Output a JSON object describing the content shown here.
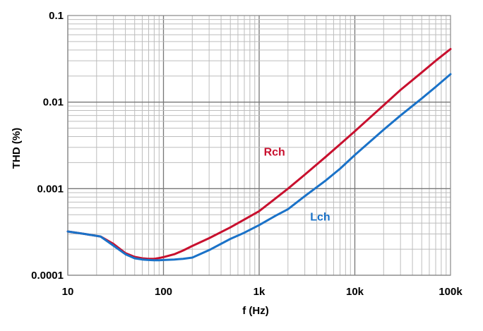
{
  "chart_data": {
    "type": "line",
    "xlabel": "f (Hz)",
    "ylabel": "THD (%)",
    "x_scale": "log",
    "y_scale": "log",
    "xlim": [
      10,
      100000
    ],
    "ylim": [
      0.0001,
      0.1
    ],
    "grid": true,
    "x_ticks": [
      {
        "value": 10,
        "label": "10"
      },
      {
        "value": 100,
        "label": "100"
      },
      {
        "value": 1000,
        "label": "1k"
      },
      {
        "value": 10000,
        "label": "10k"
      },
      {
        "value": 100000,
        "label": "100k"
      }
    ],
    "y_ticks": [
      {
        "value": 0.0001,
        "label": "0.0001"
      },
      {
        "value": 0.001,
        "label": "0.001"
      },
      {
        "value": 0.01,
        "label": "0.01"
      },
      {
        "value": 0.1,
        "label": "0.1"
      }
    ],
    "series": [
      {
        "name": "Rch",
        "color": "#c8102e",
        "x": [
          10,
          15,
          22,
          30,
          40,
          50,
          60,
          70,
          80,
          90,
          100,
          130,
          160,
          200,
          300,
          500,
          700,
          1000,
          1500,
          2000,
          3000,
          5000,
          7000,
          10000,
          20000,
          30000,
          50000,
          70000,
          100000
        ],
        "y": [
          0.00032,
          0.0003,
          0.00028,
          0.00023,
          0.00018,
          0.000163,
          0.000157,
          0.000155,
          0.000155,
          0.000158,
          0.000162,
          0.000175,
          0.000193,
          0.000218,
          0.000268,
          0.000357,
          0.00044,
          0.00055,
          0.00078,
          0.001,
          0.00145,
          0.00235,
          0.00325,
          0.0046,
          0.0092,
          0.0138,
          0.022,
          0.03,
          0.041
        ]
      },
      {
        "name": "Lch",
        "color": "#1a72c8",
        "x": [
          10,
          15,
          22,
          30,
          40,
          50,
          60,
          70,
          80,
          90,
          100,
          130,
          160,
          200,
          300,
          500,
          700,
          1000,
          1500,
          2000,
          3000,
          5000,
          7000,
          10000,
          20000,
          30000,
          50000,
          70000,
          100000
        ],
        "y": [
          0.00032,
          0.0003,
          0.00028,
          0.00022,
          0.000175,
          0.000157,
          0.000152,
          0.00015,
          0.000149,
          0.000149,
          0.00015,
          0.000152,
          0.000155,
          0.00016,
          0.000195,
          0.000263,
          0.00031,
          0.00038,
          0.00049,
          0.00058,
          0.00082,
          0.00125,
          0.0017,
          0.00245,
          0.0048,
          0.007,
          0.011,
          0.015,
          0.021
        ]
      }
    ]
  }
}
